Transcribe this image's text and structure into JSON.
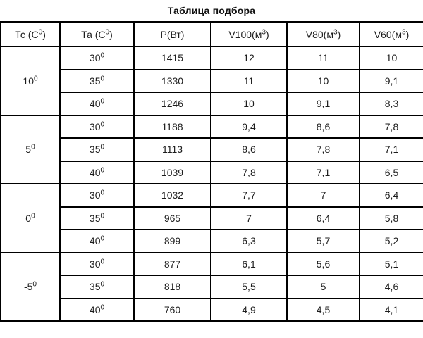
{
  "title": "Таблица подбора",
  "table": {
    "headers": {
      "tc": "Тс (С⁰)",
      "ta": "Та (С⁰)",
      "p": "Р(Вт)",
      "v100": "V100(м³)",
      "v80": "V80(м³)",
      "v60": "V60(м³)"
    },
    "groups": [
      {
        "tc": "10⁰",
        "rows": [
          {
            "ta": "30⁰",
            "p": "1415",
            "v100": "12",
            "v80": "11",
            "v60": "10"
          },
          {
            "ta": "35⁰",
            "p": "1330",
            "v100": "11",
            "v80": "10",
            "v60": "9,1"
          },
          {
            "ta": "40⁰",
            "p": "1246",
            "v100": "10",
            "v80": "9,1",
            "v60": "8,3"
          }
        ]
      },
      {
        "tc": "5⁰",
        "rows": [
          {
            "ta": "30⁰",
            "p": "1188",
            "v100": "9,4",
            "v80": "8,6",
            "v60": "7,8"
          },
          {
            "ta": "35⁰",
            "p": "1113",
            "v100": "8,6",
            "v80": "7,8",
            "v60": "7,1"
          },
          {
            "ta": "40⁰",
            "p": "1039",
            "v100": "7,8",
            "v80": "7,1",
            "v60": "6,5"
          }
        ]
      },
      {
        "tc": "0⁰",
        "rows": [
          {
            "ta": "30⁰",
            "p": "1032",
            "v100": "7,7",
            "v80": "7",
            "v60": "6,4"
          },
          {
            "ta": "35⁰",
            "p": "965",
            "v100": "7",
            "v80": "6,4",
            "v60": "5,8"
          },
          {
            "ta": "40⁰",
            "p": "899",
            "v100": "6,3",
            "v80": "5,7",
            "v60": "5,2"
          }
        ]
      },
      {
        "tc": "-5⁰",
        "rows": [
          {
            "ta": "30⁰",
            "p": "877",
            "v100": "6,1",
            "v80": "5,6",
            "v60": "5,1"
          },
          {
            "ta": "35⁰",
            "p": "818",
            "v100": "5,5",
            "v80": "5",
            "v60": "4,6"
          },
          {
            "ta": "40⁰",
            "p": "760",
            "v100": "4,9",
            "v80": "4,5",
            "v60": "4,1"
          }
        ]
      }
    ]
  },
  "colors": {
    "border": "#000000",
    "text": "#1c1c1c",
    "background": "#ffffff"
  }
}
